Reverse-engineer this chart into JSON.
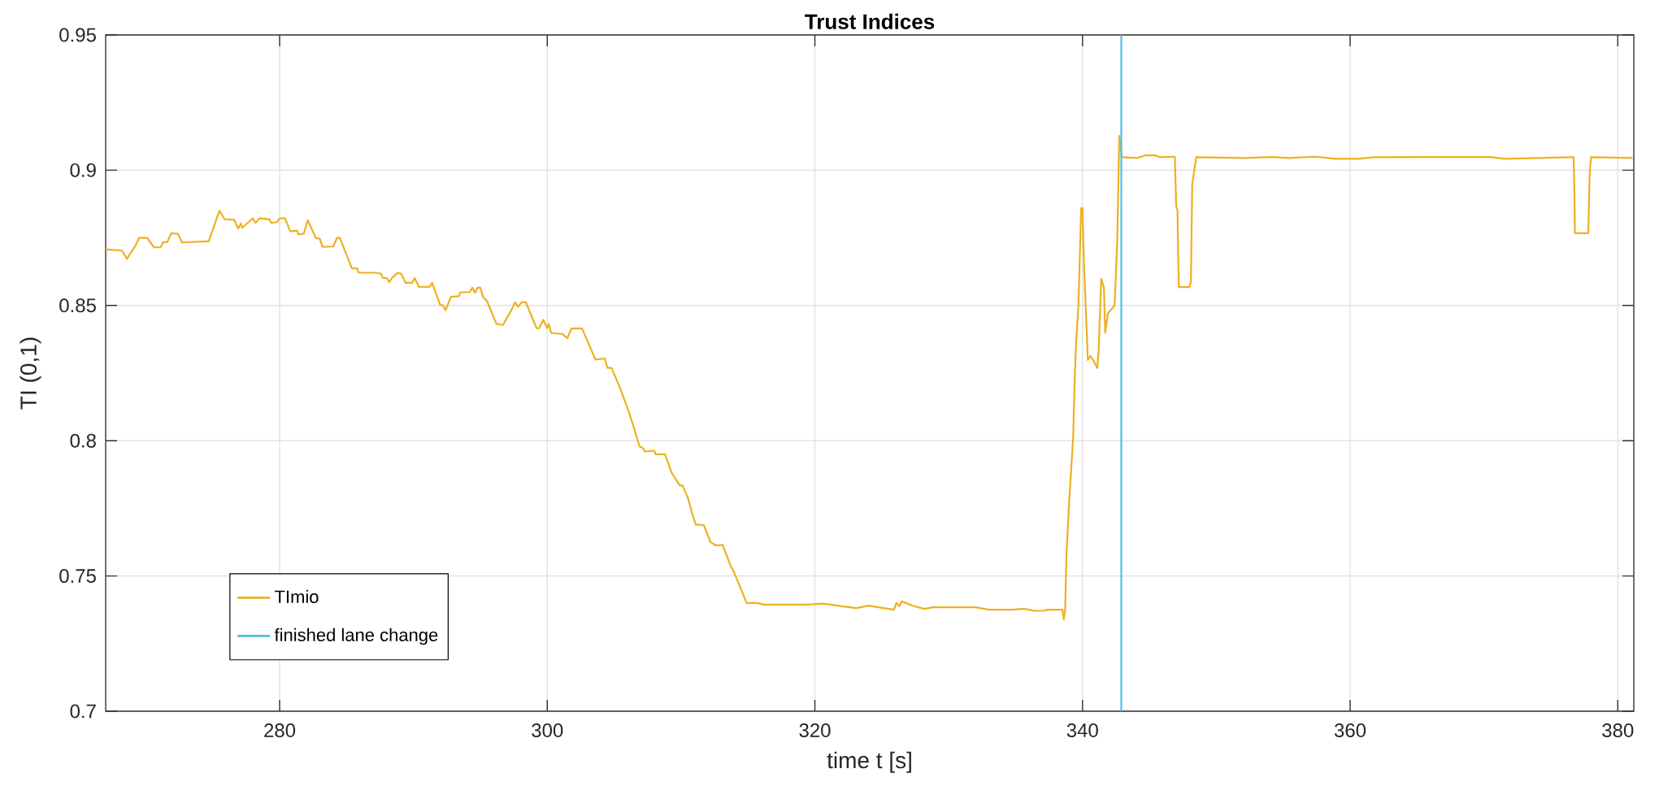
{
  "chart_data": {
    "type": "line",
    "title": "Trust Indices",
    "xlabel": "time t [s]",
    "ylabel": "TI (0,1)",
    "xlim": [
      267,
      381.2
    ],
    "ylim": [
      0.7,
      0.95
    ],
    "xticks": [
      280,
      300,
      320,
      340,
      360,
      380
    ],
    "yticks": [
      0.7,
      0.75,
      0.8,
      0.85,
      0.9,
      0.95
    ],
    "grid": true,
    "legend": "bottom left",
    "line_style": "solid",
    "marker": "none",
    "series": [
      {
        "name": "TImio",
        "color": "#edb120",
        "x": [
          267,
          268.2,
          268.4,
          268.6,
          268.8,
          269.2,
          269.5,
          270.1,
          270.6,
          271.1,
          271.3,
          271.6,
          271.9,
          272.4,
          272.7,
          274.7,
          275.5,
          275.9,
          276.6,
          276.9,
          277.1,
          277.2,
          277.6,
          278.0,
          278.2,
          278.5,
          279.2,
          279.4,
          279.8,
          280.0,
          280.4,
          280.8,
          281.3,
          281.4,
          281.8,
          282.1,
          282.4,
          282.7,
          283.0,
          283.2,
          284.0,
          284.3,
          284.5,
          285.4,
          285.8,
          285.9,
          287.2,
          287.6,
          287.7,
          288.0,
          288.2,
          288.4,
          288.8,
          289.1,
          289.4,
          289.9,
          290.1,
          290.4,
          291.2,
          291.4,
          292.0,
          292.2,
          292.4,
          292.8,
          293.4,
          293.5,
          294.2,
          294.4,
          294.6,
          294.8,
          295.0,
          295.2,
          295.5,
          296.2,
          296.7,
          296.9,
          297.3,
          297.6,
          297.8,
          298.1,
          298.4,
          299.2,
          299.4,
          299.7,
          300.0,
          300.1,
          300.3,
          301.1,
          301.5,
          301.8,
          302.6,
          303.6,
          304.3,
          304.5,
          304.8,
          305.4,
          306.1,
          306.5,
          306.9,
          307.1,
          307.3,
          308.0,
          308.1,
          308.8,
          309.3,
          309.5,
          309.9,
          310.1,
          310.5,
          310.9,
          311.1,
          311.7,
          312.2,
          312.6,
          313.1,
          313.7,
          313.9,
          314.9,
          315.7,
          316.2,
          319.5,
          320.5,
          321.2,
          322.0,
          323.1,
          324.0,
          325.9,
          326.1,
          326.3,
          326.5,
          327.3,
          328.2,
          328.8,
          332.0,
          333.0,
          334.8,
          335.6,
          336.4,
          337.1,
          337.4,
          338.5,
          338.6,
          338.7,
          338.8,
          339.0,
          339.3,
          339.4,
          339.5,
          339.7,
          339.9,
          340.0,
          340.1,
          340.3,
          340.4,
          340.6,
          340.8,
          341.1,
          341.2,
          341.4,
          341.6,
          341.7,
          341.9,
          342.2,
          342.4,
          342.6,
          342.75,
          342.95,
          344.1,
          344.7,
          345.4,
          345.8,
          346.9,
          347.0,
          347.1,
          347.15,
          347.2,
          348.0,
          348.1,
          348.2,
          348.5,
          352.2,
          354.2,
          355.4,
          357.4,
          358.9,
          360.6,
          361.8,
          370.4,
          371.6,
          376.5,
          376.7,
          376.75,
          376.8,
          377.7,
          377.8,
          377.9,
          378.0,
          381.1
        ],
        "values": [
          0.8707,
          0.8703,
          0.8688,
          0.8672,
          0.869,
          0.8719,
          0.875,
          0.875,
          0.8715,
          0.8715,
          0.8734,
          0.8734,
          0.8767,
          0.8765,
          0.8733,
          0.8737,
          0.885,
          0.8818,
          0.8817,
          0.8784,
          0.8803,
          0.8787,
          0.8805,
          0.8822,
          0.8805,
          0.8822,
          0.8819,
          0.8805,
          0.8808,
          0.8822,
          0.8822,
          0.8774,
          0.8777,
          0.8763,
          0.8765,
          0.8815,
          0.8783,
          0.8749,
          0.8747,
          0.8717,
          0.8718,
          0.875,
          0.875,
          0.8637,
          0.8637,
          0.8621,
          0.8621,
          0.8617,
          0.8602,
          0.8602,
          0.8586,
          0.8602,
          0.862,
          0.8617,
          0.8584,
          0.8584,
          0.8601,
          0.8569,
          0.8569,
          0.8584,
          0.8501,
          0.8501,
          0.8482,
          0.8532,
          0.8534,
          0.8549,
          0.8549,
          0.8566,
          0.8547,
          0.8566,
          0.8566,
          0.8532,
          0.8516,
          0.8432,
          0.8428,
          0.8447,
          0.8481,
          0.8512,
          0.8495,
          0.8512,
          0.8512,
          0.8416,
          0.8416,
          0.8447,
          0.8416,
          0.8431,
          0.8398,
          0.8395,
          0.8379,
          0.8415,
          0.8415,
          0.83,
          0.8304,
          0.8269,
          0.8269,
          0.82,
          0.8106,
          0.8044,
          0.7978,
          0.7975,
          0.796,
          0.7963,
          0.795,
          0.795,
          0.7881,
          0.7866,
          0.7835,
          0.7835,
          0.779,
          0.7719,
          0.769,
          0.7688,
          0.7625,
          0.7613,
          0.7615,
          0.7538,
          0.7521,
          0.74,
          0.74,
          0.7394,
          0.7394,
          0.7398,
          0.7394,
          0.7388,
          0.7381,
          0.739,
          0.7375,
          0.74,
          0.7388,
          0.7406,
          0.739,
          0.7378,
          0.7384,
          0.7384,
          0.7375,
          0.7375,
          0.7379,
          0.7371,
          0.7371,
          0.7375,
          0.7375,
          0.734,
          0.7373,
          0.7575,
          0.7772,
          0.801,
          0.8197,
          0.8341,
          0.8507,
          0.886,
          0.886,
          0.8666,
          0.8421,
          0.8298,
          0.8313,
          0.8298,
          0.8269,
          0.8327,
          0.8598,
          0.8565,
          0.8399,
          0.8471,
          0.8488,
          0.85,
          0.8745,
          0.9127,
          0.9048,
          0.9045,
          0.9055,
          0.9055,
          0.9048,
          0.905,
          0.8867,
          0.8853,
          0.868,
          0.8568,
          0.8568,
          0.8586,
          0.8947,
          0.9048,
          0.9045,
          0.9049,
          0.9045,
          0.905,
          0.9042,
          0.9042,
          0.9048,
          0.9049,
          0.9042,
          0.9048,
          0.9048,
          0.8947,
          0.8767,
          0.8767,
          0.8767,
          0.899,
          0.9048,
          0.9045
        ]
      },
      {
        "name": "finished lane change",
        "color": "#4dbeee",
        "x": [
          342.9,
          342.9
        ],
        "values": [
          0.7,
          0.95
        ]
      }
    ]
  }
}
